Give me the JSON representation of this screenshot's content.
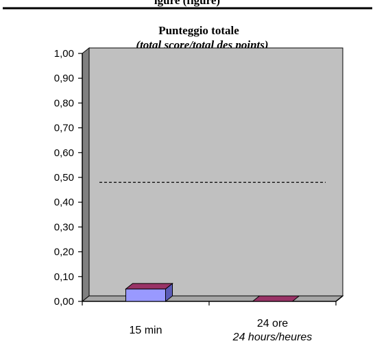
{
  "header_fragment": "igure (figure)",
  "chart_data": {
    "type": "bar",
    "title": "Punteggio totale",
    "subtitle": "(total score/total des points)",
    "categories": [
      "15 min",
      "24 ore"
    ],
    "category_sublabels": [
      "",
      "24 hours/heures"
    ],
    "values": [
      0.05,
      0.0
    ],
    "ylim": [
      0,
      1
    ],
    "yticks": [
      "0,00",
      "0,10",
      "0,20",
      "0,30",
      "0,40",
      "0,50",
      "0,60",
      "0,70",
      "0,80",
      "0,90",
      "1,00"
    ],
    "reference_line": 0.48,
    "reference_line_style": "dashed",
    "grid": false,
    "legend": "none",
    "colors": {
      "bar_front": "#9999ff",
      "bar_top": "#993366",
      "plot_bg": "#c0c0c0",
      "wall_side": "#808080",
      "floor": "#a6a6a6"
    }
  }
}
